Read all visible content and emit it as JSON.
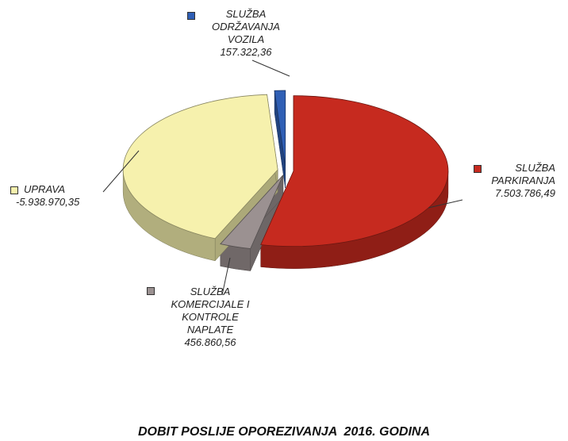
{
  "chart_data": {
    "type": "pie",
    "title": "DOBIT POSLIJE OPOREZIVANJA  2016. GODINA",
    "categories": [
      "SLUŽBA\nODRŽAVANJA\nVOZILA",
      "SLUŽBA\nPARKIRANJA",
      "SLUŽBA\nKOMERCIJALE  I\nKONTROLE\nNAPLATE",
      "UPRAVA"
    ],
    "values": [
      157322.36,
      7503786.49,
      456860.56,
      -5938970.35
    ],
    "value_labels": [
      "157.322,36",
      "7.503.786,49",
      "456.860,56",
      "-5.938.970,35"
    ],
    "colors": [
      "#2f5fb5",
      "#c62a1f",
      "#9b9191",
      "#f6f1ad"
    ]
  }
}
